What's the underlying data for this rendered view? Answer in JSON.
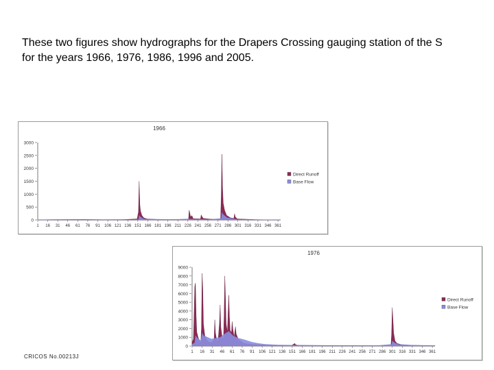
{
  "slide": {
    "heading_line1": "These two figures show hydrographs for the Drapers Crossing gauging station of the S",
    "heading_line2": "for the  years 1966, 1976, 1986, 1996 and 2005.",
    "footer": "CRICOS No.00213J"
  },
  "colors": {
    "direct_runoff": "#8b2a55",
    "base_flow": "#8a8ee0",
    "axis": "#555555",
    "text": "#000000"
  },
  "chart_data": [
    {
      "type": "area",
      "title": "1966",
      "legend_position": "right",
      "series_names": [
        "Direct Runoff",
        "Base Flow"
      ],
      "yticks": [
        "3000",
        "2500",
        "2000",
        "1500",
        "1000",
        "500",
        "0"
      ],
      "ylim": [
        0,
        3000
      ],
      "xticks": [
        "1",
        "16",
        "31",
        "46",
        "61",
        "76",
        "91",
        "106",
        "121",
        "136",
        "151",
        "166",
        "181",
        "196",
        "211",
        "226",
        "241",
        "256",
        "271",
        "286",
        "301",
        "316",
        "331",
        "346",
        "361"
      ],
      "xlim": [
        1,
        365
      ],
      "direct_runoff": [
        [
          1,
          0
        ],
        [
          20,
          12
        ],
        [
          40,
          15
        ],
        [
          70,
          18
        ],
        [
          100,
          10
        ],
        [
          130,
          15
        ],
        [
          150,
          40
        ],
        [
          152,
          320
        ],
        [
          153,
          1500
        ],
        [
          154,
          600
        ],
        [
          155,
          350
        ],
        [
          157,
          180
        ],
        [
          160,
          80
        ],
        [
          165,
          40
        ],
        [
          180,
          20
        ],
        [
          200,
          15
        ],
        [
          227,
          25
        ],
        [
          228,
          380
        ],
        [
          229,
          260
        ],
        [
          230,
          120
        ],
        [
          232,
          170
        ],
        [
          234,
          50
        ],
        [
          245,
          40
        ],
        [
          246,
          200
        ],
        [
          247,
          140
        ],
        [
          249,
          60
        ],
        [
          260,
          30
        ],
        [
          275,
          20
        ],
        [
          276,
          900
        ],
        [
          277,
          2550
        ],
        [
          278,
          1250
        ],
        [
          279,
          650
        ],
        [
          281,
          380
        ],
        [
          284,
          180
        ],
        [
          290,
          80
        ],
        [
          295,
          60
        ],
        [
          296,
          240
        ],
        [
          297,
          120
        ],
        [
          300,
          40
        ],
        [
          330,
          10
        ],
        [
          365,
          0
        ]
      ],
      "base_flow": [
        [
          1,
          0
        ],
        [
          30,
          8
        ],
        [
          60,
          10
        ],
        [
          100,
          8
        ],
        [
          140,
          10
        ],
        [
          152,
          20
        ],
        [
          153,
          180
        ],
        [
          155,
          120
        ],
        [
          160,
          40
        ],
        [
          200,
          15
        ],
        [
          228,
          40
        ],
        [
          235,
          30
        ],
        [
          246,
          25
        ],
        [
          260,
          20
        ],
        [
          276,
          60
        ],
        [
          277,
          300
        ],
        [
          279,
          210
        ],
        [
          285,
          90
        ],
        [
          296,
          40
        ],
        [
          300,
          20
        ],
        [
          330,
          10
        ],
        [
          365,
          0
        ]
      ]
    },
    {
      "type": "area",
      "title": "1976",
      "legend_position": "right",
      "series_names": [
        "Direct Runoff",
        "Base Flow"
      ],
      "yticks": [
        "9000",
        "8000",
        "7000",
        "6000",
        "5000",
        "4000",
        "3000",
        "2000",
        "1000",
        "0"
      ],
      "ylim": [
        0,
        9000
      ],
      "xticks": [
        "1",
        "16",
        "31",
        "46",
        "61",
        "76",
        "91",
        "106",
        "121",
        "136",
        "151",
        "166",
        "181",
        "196",
        "211",
        "226",
        "241",
        "256",
        "271",
        "286",
        "301",
        "316",
        "331",
        "346",
        "361"
      ],
      "xlim": [
        1,
        365
      ],
      "direct_runoff": [
        [
          1,
          400
        ],
        [
          3,
          800
        ],
        [
          5,
          6800
        ],
        [
          6,
          7200
        ],
        [
          7,
          3500
        ],
        [
          8,
          1600
        ],
        [
          10,
          1000
        ],
        [
          12,
          600
        ],
        [
          14,
          400
        ],
        [
          15,
          2000
        ],
        [
          16,
          8300
        ],
        [
          17,
          6500
        ],
        [
          18,
          2500
        ],
        [
          20,
          1200
        ],
        [
          23,
          700
        ],
        [
          26,
          500
        ],
        [
          30,
          400
        ],
        [
          34,
          800
        ],
        [
          35,
          3000
        ],
        [
          36,
          1500
        ],
        [
          38,
          600
        ],
        [
          40,
          700
        ],
        [
          42,
          2600
        ],
        [
          43,
          4700
        ],
        [
          44,
          2200
        ],
        [
          46,
          1000
        ],
        [
          48,
          800
        ],
        [
          49,
          3500
        ],
        [
          50,
          8000
        ],
        [
          51,
          5500
        ],
        [
          52,
          2500
        ],
        [
          54,
          1600
        ],
        [
          55,
          4000
        ],
        [
          56,
          5800
        ],
        [
          57,
          3300
        ],
        [
          58,
          1800
        ],
        [
          60,
          1500
        ],
        [
          61,
          2800
        ],
        [
          62,
          2000
        ],
        [
          64,
          1000
        ],
        [
          66,
          2200
        ],
        [
          67,
          1400
        ],
        [
          70,
          800
        ],
        [
          75,
          500
        ],
        [
          80,
          300
        ],
        [
          90,
          200
        ],
        [
          100,
          150
        ],
        [
          120,
          100
        ],
        [
          140,
          80
        ],
        [
          150,
          60
        ],
        [
          155,
          300
        ],
        [
          156,
          150
        ],
        [
          160,
          80
        ],
        [
          200,
          60
        ],
        [
          240,
          50
        ],
        [
          280,
          40
        ],
        [
          299,
          60
        ],
        [
          300,
          1400
        ],
        [
          301,
          4400
        ],
        [
          302,
          3000
        ],
        [
          303,
          1500
        ],
        [
          305,
          600
        ],
        [
          308,
          300
        ],
        [
          315,
          150
        ],
        [
          330,
          80
        ],
        [
          365,
          40
        ]
      ],
      "base_flow": [
        [
          1,
          200
        ],
        [
          5,
          400
        ],
        [
          6,
          1200
        ],
        [
          8,
          1000
        ],
        [
          14,
          600
        ],
        [
          16,
          1500
        ],
        [
          18,
          1200
        ],
        [
          30,
          800
        ],
        [
          43,
          1000
        ],
        [
          50,
          1400
        ],
        [
          56,
          1700
        ],
        [
          62,
          1200
        ],
        [
          70,
          900
        ],
        [
          80,
          700
        ],
        [
          90,
          450
        ],
        [
          100,
          300
        ],
        [
          110,
          200
        ],
        [
          130,
          120
        ],
        [
          160,
          90
        ],
        [
          200,
          70
        ],
        [
          280,
          60
        ],
        [
          300,
          200
        ],
        [
          301,
          600
        ],
        [
          304,
          400
        ],
        [
          310,
          200
        ],
        [
          330,
          100
        ],
        [
          365,
          50
        ]
      ]
    }
  ]
}
